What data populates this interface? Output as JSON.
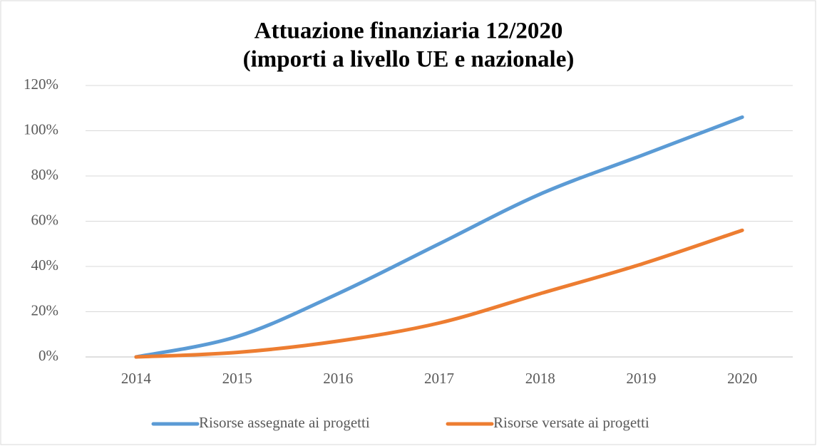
{
  "chart_data": {
    "type": "line",
    "title": [
      "Attuazione finanziaria 12/2020",
      "(importi a livello UE e nazionale)"
    ],
    "categories": [
      "2014",
      "2015",
      "2016",
      "2017",
      "2018",
      "2019",
      "2020"
    ],
    "series": [
      {
        "name": "Risorse assegnate ai progetti",
        "color": "#5b9bd5",
        "values": [
          0,
          9,
          28,
          50,
          72,
          89,
          106
        ]
      },
      {
        "name": "Risorse versate ai progetti",
        "color": "#ed7d31",
        "values": [
          0,
          2,
          7,
          15,
          28,
          41,
          56
        ]
      }
    ],
    "ylim": [
      0,
      120
    ],
    "yticks": [
      {
        "value": 0,
        "label": "0%"
      },
      {
        "value": 20,
        "label": "20%"
      },
      {
        "value": 40,
        "label": "40%"
      },
      {
        "value": 60,
        "label": "60%"
      },
      {
        "value": 80,
        "label": "80%"
      },
      {
        "value": 100,
        "label": "100%"
      },
      {
        "value": 120,
        "label": "120%"
      }
    ],
    "grid": true,
    "smooth": true,
    "legend": "bottom"
  }
}
